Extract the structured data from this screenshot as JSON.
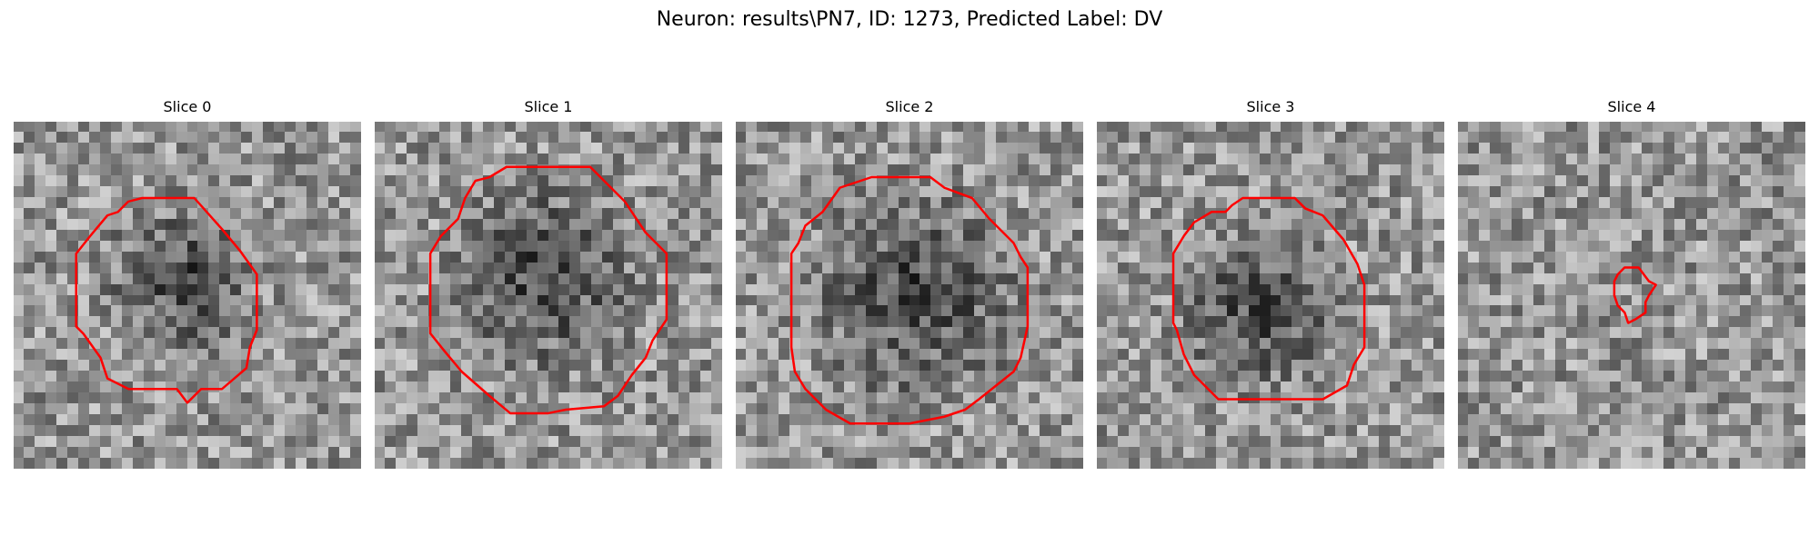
{
  "figure": {
    "title": "Neuron: results\\PN7, ID: 1273, Predicted Label: DV"
  },
  "contour_color": "#ff0000",
  "panels": [
    {
      "title": "Slice 0",
      "seed": 11,
      "dark_center": [
        0.49,
        0.46
      ],
      "dark_radius": 0.27,
      "contour": [
        [
          0.37,
          0.22
        ],
        [
          0.52,
          0.22
        ],
        [
          0.6,
          0.31
        ],
        [
          0.65,
          0.37
        ],
        [
          0.7,
          0.44
        ],
        [
          0.7,
          0.6
        ],
        [
          0.68,
          0.65
        ],
        [
          0.67,
          0.71
        ],
        [
          0.6,
          0.77
        ],
        [
          0.54,
          0.77
        ],
        [
          0.5,
          0.81
        ],
        [
          0.47,
          0.77
        ],
        [
          0.33,
          0.77
        ],
        [
          0.27,
          0.74
        ],
        [
          0.25,
          0.68
        ],
        [
          0.2,
          0.61
        ],
        [
          0.18,
          0.59
        ],
        [
          0.18,
          0.38
        ],
        [
          0.22,
          0.33
        ],
        [
          0.27,
          0.27
        ],
        [
          0.3,
          0.26
        ],
        [
          0.33,
          0.23
        ]
      ]
    },
    {
      "title": "Slice 1",
      "seed": 23,
      "dark_center": [
        0.49,
        0.45
      ],
      "dark_radius": 0.34,
      "contour": [
        [
          0.38,
          0.13
        ],
        [
          0.62,
          0.13
        ],
        [
          0.68,
          0.19
        ],
        [
          0.72,
          0.23
        ],
        [
          0.78,
          0.32
        ],
        [
          0.84,
          0.38
        ],
        [
          0.84,
          0.57
        ],
        [
          0.8,
          0.63
        ],
        [
          0.78,
          0.68
        ],
        [
          0.74,
          0.73
        ],
        [
          0.7,
          0.79
        ],
        [
          0.66,
          0.82
        ],
        [
          0.55,
          0.83
        ],
        [
          0.5,
          0.84
        ],
        [
          0.45,
          0.84
        ],
        [
          0.39,
          0.84
        ],
        [
          0.33,
          0.79
        ],
        [
          0.25,
          0.72
        ],
        [
          0.2,
          0.66
        ],
        [
          0.16,
          0.61
        ],
        [
          0.16,
          0.38
        ],
        [
          0.19,
          0.33
        ],
        [
          0.24,
          0.28
        ],
        [
          0.26,
          0.22
        ],
        [
          0.29,
          0.17
        ],
        [
          0.33,
          0.16
        ]
      ]
    },
    {
      "title": "Slice 2",
      "seed": 37,
      "dark_center": [
        0.52,
        0.5
      ],
      "dark_radius": 0.38,
      "contour": [
        [
          0.39,
          0.16
        ],
        [
          0.56,
          0.16
        ],
        [
          0.6,
          0.19
        ],
        [
          0.68,
          0.22
        ],
        [
          0.73,
          0.28
        ],
        [
          0.8,
          0.35
        ],
        [
          0.82,
          0.39
        ],
        [
          0.84,
          0.42
        ],
        [
          0.84,
          0.59
        ],
        [
          0.82,
          0.68
        ],
        [
          0.8,
          0.72
        ],
        [
          0.75,
          0.76
        ],
        [
          0.7,
          0.8
        ],
        [
          0.66,
          0.83
        ],
        [
          0.6,
          0.85
        ],
        [
          0.5,
          0.87
        ],
        [
          0.33,
          0.87
        ],
        [
          0.26,
          0.83
        ],
        [
          0.2,
          0.77
        ],
        [
          0.17,
          0.72
        ],
        [
          0.16,
          0.65
        ],
        [
          0.16,
          0.38
        ],
        [
          0.18,
          0.35
        ],
        [
          0.2,
          0.3
        ],
        [
          0.25,
          0.26
        ],
        [
          0.3,
          0.19
        ]
      ]
    },
    {
      "title": "Slice 3",
      "seed": 53,
      "dark_center": [
        0.47,
        0.55
      ],
      "dark_radius": 0.28,
      "contour": [
        [
          0.42,
          0.22
        ],
        [
          0.57,
          0.22
        ],
        [
          0.6,
          0.25
        ],
        [
          0.65,
          0.27
        ],
        [
          0.71,
          0.34
        ],
        [
          0.75,
          0.41
        ],
        [
          0.77,
          0.47
        ],
        [
          0.77,
          0.65
        ],
        [
          0.74,
          0.7
        ],
        [
          0.72,
          0.76
        ],
        [
          0.65,
          0.8
        ],
        [
          0.35,
          0.8
        ],
        [
          0.28,
          0.73
        ],
        [
          0.25,
          0.67
        ],
        [
          0.23,
          0.6
        ],
        [
          0.22,
          0.58
        ],
        [
          0.22,
          0.38
        ],
        [
          0.25,
          0.33
        ],
        [
          0.28,
          0.29
        ],
        [
          0.33,
          0.26
        ],
        [
          0.37,
          0.26
        ],
        [
          0.39,
          0.24
        ]
      ]
    },
    {
      "title": "Slice 4",
      "seed": 71,
      "dark_center": [
        0.5,
        0.5
      ],
      "dark_radius": 0.0,
      "contour": [
        [
          0.48,
          0.42
        ],
        [
          0.52,
          0.42
        ],
        [
          0.55,
          0.46
        ],
        [
          0.57,
          0.47
        ],
        [
          0.55,
          0.5
        ],
        [
          0.54,
          0.52
        ],
        [
          0.54,
          0.55
        ],
        [
          0.51,
          0.57
        ],
        [
          0.49,
          0.58
        ],
        [
          0.48,
          0.55
        ],
        [
          0.46,
          0.53
        ],
        [
          0.45,
          0.5
        ],
        [
          0.45,
          0.48
        ],
        [
          0.45,
          0.46
        ],
        [
          0.46,
          0.44
        ]
      ]
    }
  ]
}
